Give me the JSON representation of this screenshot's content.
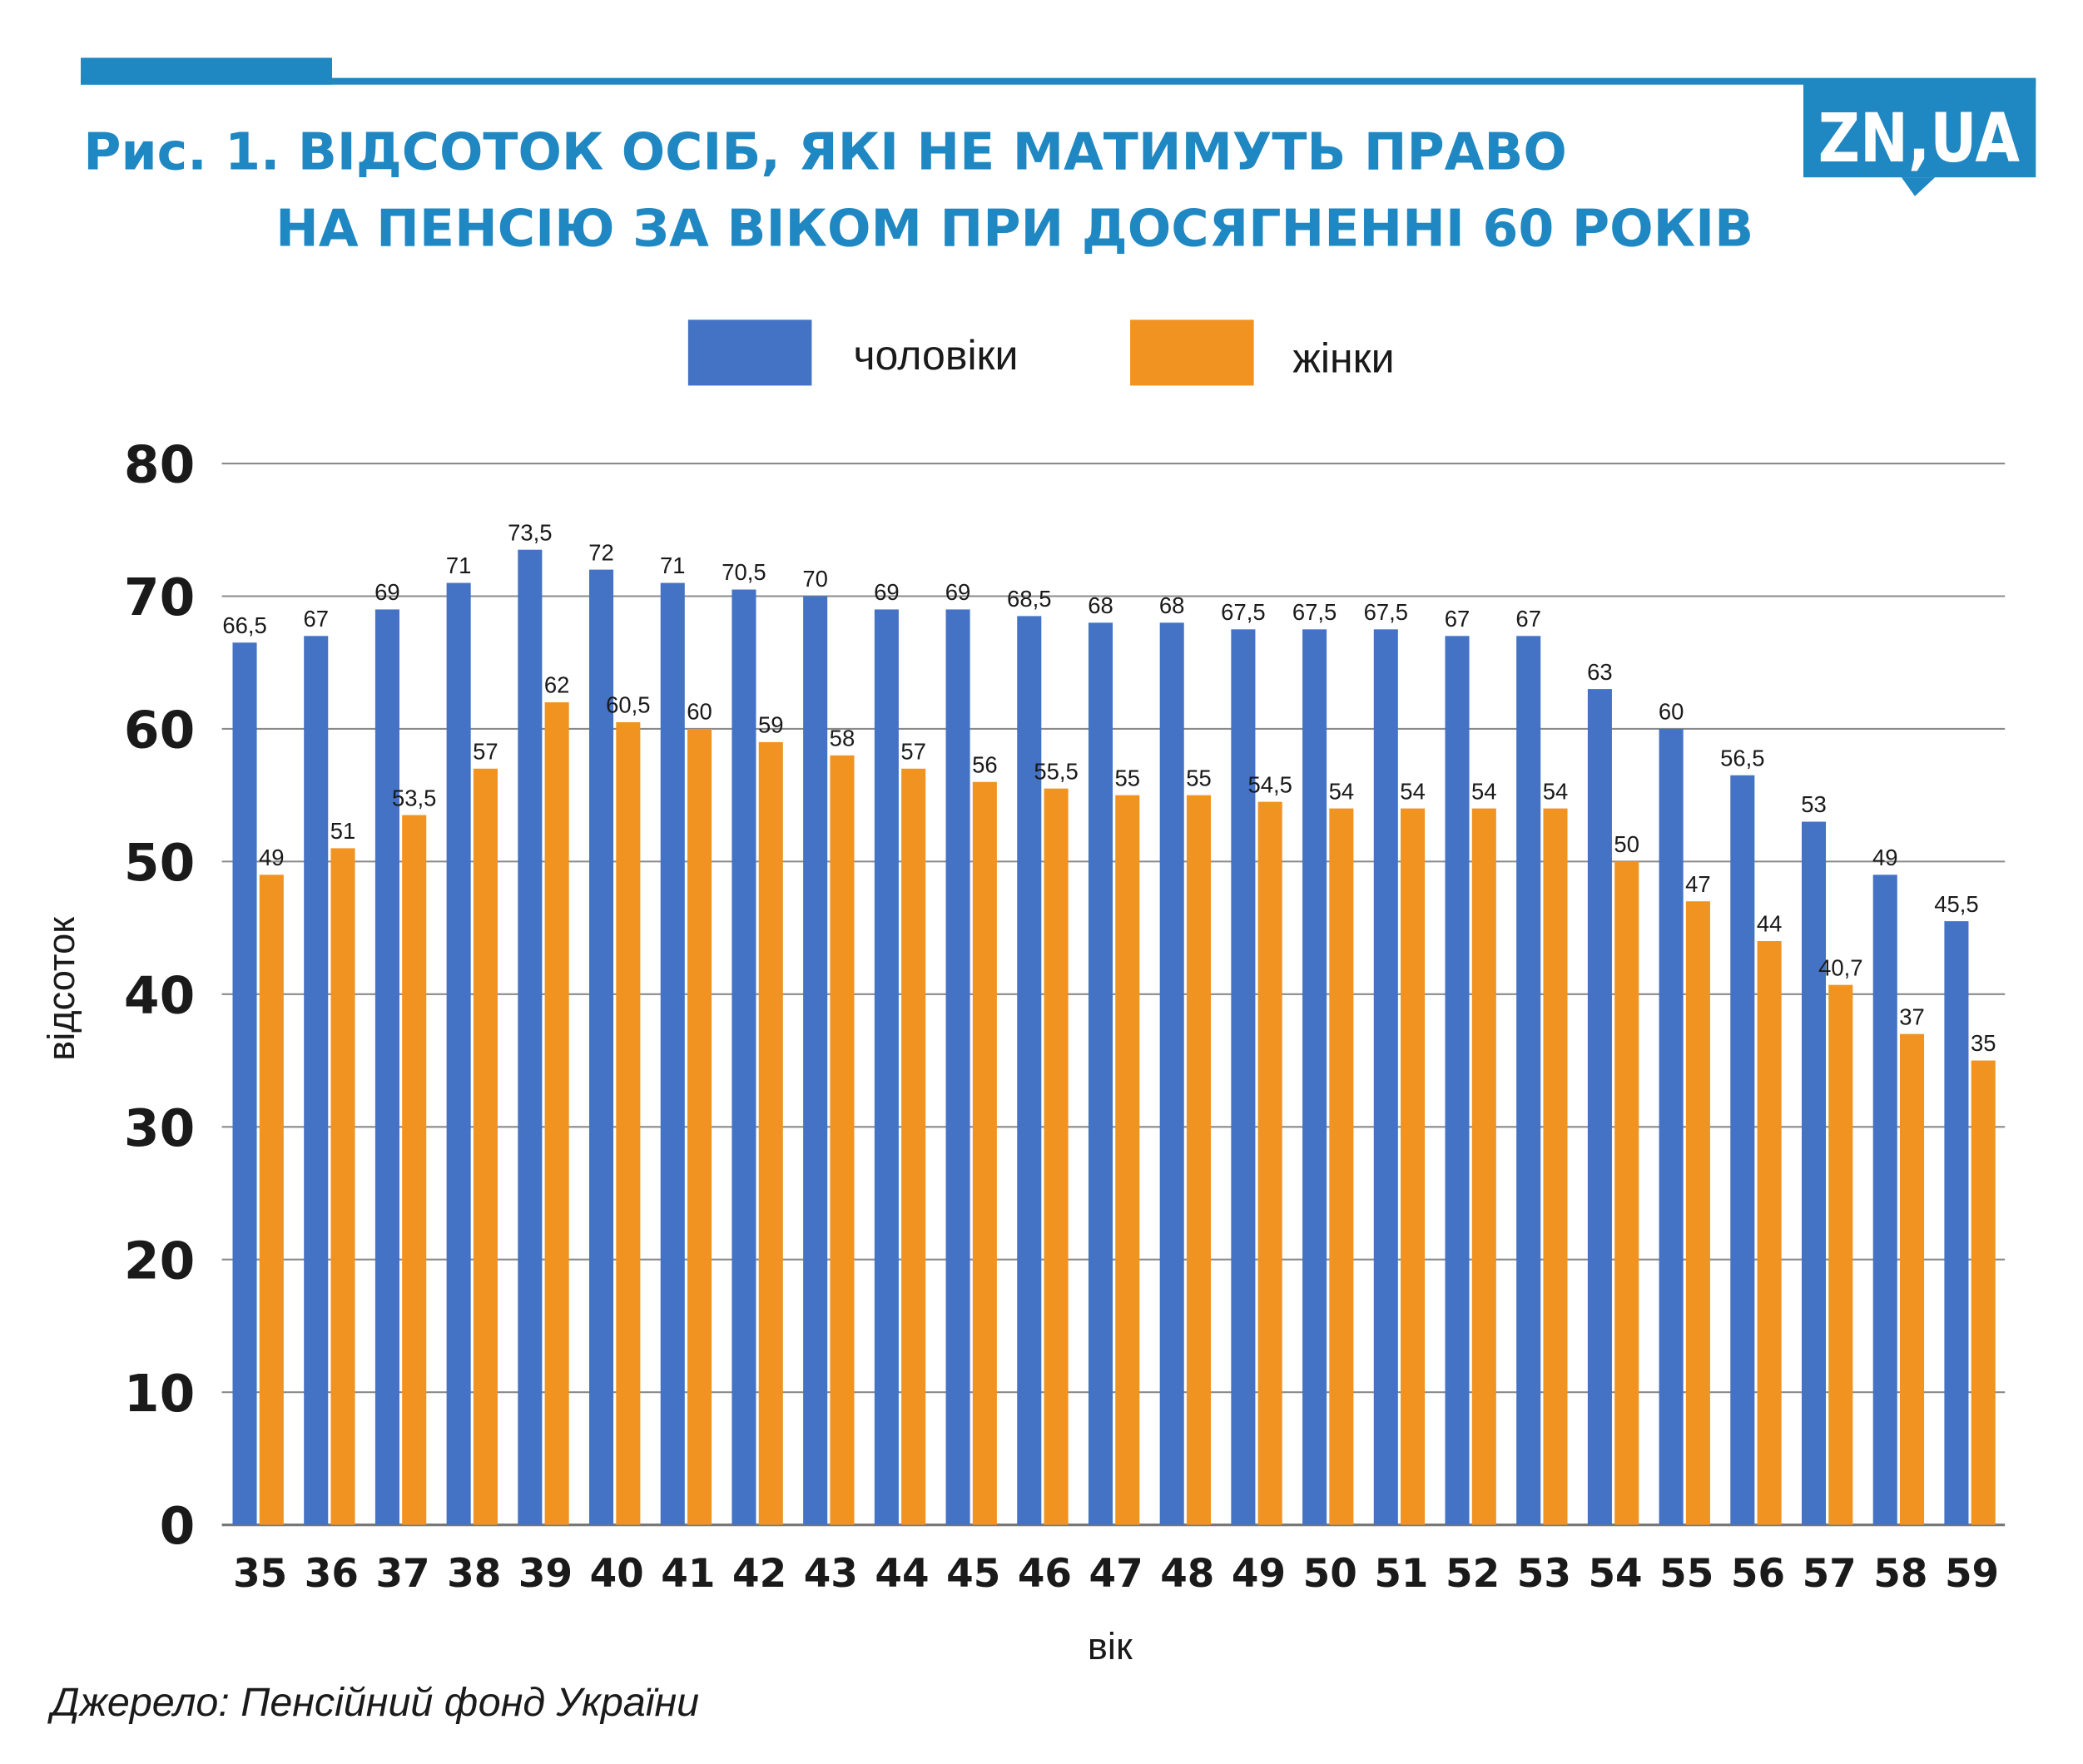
{
  "header": {
    "title_line1": "Рис. 1. ВІДСОТОК ОСІБ, ЯКІ НЕ МАТИМУТЬ ПРАВО",
    "title_line2": "НА ПЕНСІЮ ЗА ВІКОМ ПРИ ДОСЯГНЕННІ 60 РОКІВ",
    "logo": "ZN,UA",
    "brand_color": "#1f87c1"
  },
  "source": "Джерело: Пенсійний фонд України",
  "chart_data": {
    "type": "bar",
    "title": "Рис. 1. ВІДСОТОК ОСІБ, ЯКІ НЕ МАТИМУТЬ ПРАВО НА ПЕНСІЮ ЗА ВІКОМ ПРИ ДОСЯГНЕННІ 60 РОКІВ",
    "xlabel": "вік",
    "ylabel": "відсоток",
    "ylim": [
      0,
      80
    ],
    "yticks": [
      "0",
      "10",
      "20",
      "30",
      "40",
      "50",
      "60",
      "70",
      "80"
    ],
    "grid": true,
    "legend_position": "top-center",
    "categories": [
      "35",
      "36",
      "37",
      "38",
      "39",
      "40",
      "41",
      "42",
      "43",
      "44",
      "45",
      "46",
      "47",
      "48",
      "49",
      "50",
      "51",
      "52",
      "53",
      "54",
      "55",
      "56",
      "57",
      "58",
      "59"
    ],
    "series": [
      {
        "name": "чоловіки",
        "color": "#4472c4",
        "values": [
          66.5,
          67,
          69,
          71,
          73.5,
          72,
          71,
          70.5,
          70,
          69,
          69,
          68.5,
          68,
          68,
          67.5,
          67.5,
          67.5,
          67,
          67,
          63,
          60,
          56.5,
          53,
          49,
          45.5
        ],
        "labels": [
          "66,5",
          "67",
          "69",
          "71",
          "73,5",
          "72",
          "71",
          "70,5",
          "70",
          "69",
          "69",
          "68,5",
          "68",
          "68",
          "67,5",
          "67,5",
          "67,5",
          "67",
          "67",
          "63",
          "60",
          "56,5",
          "53",
          "49",
          "45,5"
        ]
      },
      {
        "name": "жінки",
        "color": "#f09321",
        "values": [
          49,
          51,
          53.5,
          57,
          62,
          60.5,
          60,
          59,
          58,
          57,
          56,
          55.5,
          55,
          55,
          54.5,
          54,
          54,
          54,
          54,
          50,
          47,
          44,
          40.7,
          37,
          35
        ],
        "labels": [
          "49",
          "51",
          "53,5",
          "57",
          "62",
          "60,5",
          "60",
          "59",
          "58",
          "57",
          "56",
          "55,5",
          "55",
          "55",
          "54,5",
          "54",
          "54",
          "54",
          "54",
          "50",
          "47",
          "44",
          "40,7",
          "37",
          "35"
        ]
      }
    ]
  }
}
